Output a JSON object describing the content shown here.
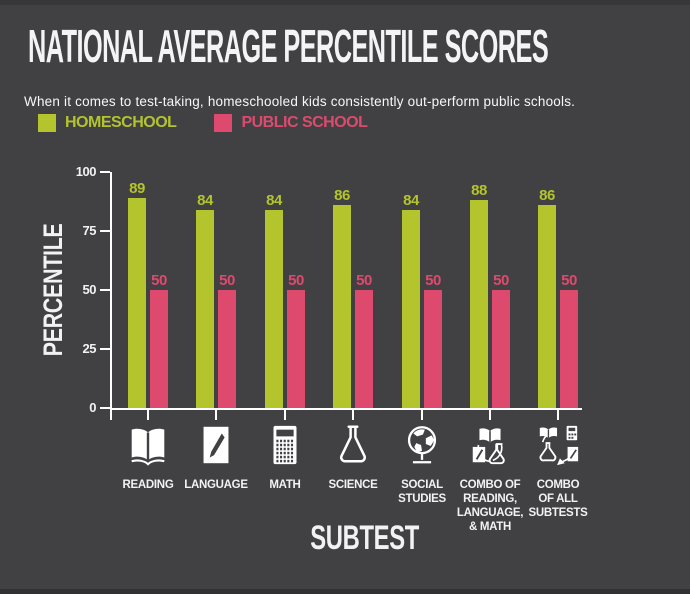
{
  "page": {
    "title": "NATIONAL AVERAGE PERCENTILE SCORES",
    "subtitle": "When it comes to test-taking, homeschooled kids consistently out-perform public schools."
  },
  "colors": {
    "background": "#414144",
    "homeschool_green": "#b3c42c",
    "public_school_pink": "#de4a6e",
    "axis_white": "#ffffff",
    "text_white": "#f2f2f2"
  },
  "legend": [
    {
      "label": "HOMESCHOOL",
      "color": "#b3c42c",
      "icon": "homeschool-swatch"
    },
    {
      "label": "PUBLIC SCHOOL",
      "color": "#de4a6e",
      "icon": "public-school-swatch"
    }
  ],
  "chart_data": {
    "type": "bar",
    "title": "NATIONAL AVERAGE PERCENTILE SCORES",
    "xlabel": "SUBTEST",
    "ylabel": "PERCENTILE",
    "ylim": [
      0,
      100
    ],
    "yticks": [
      0,
      25,
      50,
      75,
      100
    ],
    "grid": false,
    "legend_position": "top-left",
    "categories": [
      "READING",
      "LANGUAGE",
      "MATH",
      "SCIENCE",
      "SOCIAL\nSTUDIES",
      "COMBO OF\nREADING,\nLANGUAGE,\n& MATH",
      "COMBO\nOF ALL\nSUBTESTS"
    ],
    "category_icons": [
      "book-icon",
      "pencil-paper-icon",
      "calculator-icon",
      "flask-icon",
      "globe-icon",
      "combo-reading-language-math-icon",
      "combo-all-subtests-icon"
    ],
    "series": [
      {
        "name": "HOMESCHOOL",
        "color": "#b3c42c",
        "values": [
          89,
          84,
          84,
          86,
          84,
          88,
          86
        ]
      },
      {
        "name": "PUBLIC SCHOOL",
        "color": "#de4a6e",
        "values": [
          50,
          50,
          50,
          50,
          50,
          50,
          50
        ]
      }
    ],
    "bar_value_labels_shown": true
  }
}
